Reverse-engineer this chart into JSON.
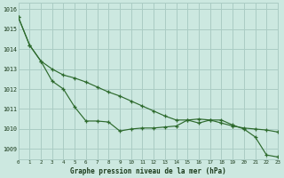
{
  "title": "Graphe pression niveau de la mer (hPa)",
  "bg_color": "#cce8e0",
  "grid_color": "#aaccC4",
  "line_color": "#2d6a2d",
  "x_min": 0,
  "x_max": 23,
  "y_min": 1008.5,
  "y_max": 1016.3,
  "y_ticks": [
    1009,
    1010,
    1011,
    1012,
    1013,
    1014,
    1015,
    1016
  ],
  "series1": [
    1015.6,
    1014.2,
    1013.4,
    1012.4,
    1012.0,
    1011.1,
    1010.4,
    1010.4,
    1010.35,
    1009.9,
    1010.0,
    1010.05,
    1010.05,
    1010.1,
    1010.15,
    1010.45,
    1010.3,
    1010.45,
    1010.45,
    1010.2,
    1010.0,
    1009.6,
    1008.7,
    1008.6
  ],
  "series2": [
    1015.6,
    1014.2,
    1013.4,
    1013.0,
    1012.7,
    1012.55,
    1012.35,
    1012.1,
    1011.85,
    1011.65,
    1011.4,
    1011.15,
    1010.9,
    1010.65,
    1010.45,
    1010.45,
    1010.5,
    1010.45,
    1010.3,
    1010.15,
    1010.05,
    1010.0,
    1009.95,
    1009.85
  ],
  "x_labels": [
    "0",
    "1",
    "2",
    "3",
    "4",
    "5",
    "6",
    "7",
    "8",
    "9",
    "10",
    "11",
    "12",
    "13",
    "14",
    "15",
    "16",
    "17",
    "18",
    "19",
    "20",
    "21",
    "22",
    "23"
  ]
}
